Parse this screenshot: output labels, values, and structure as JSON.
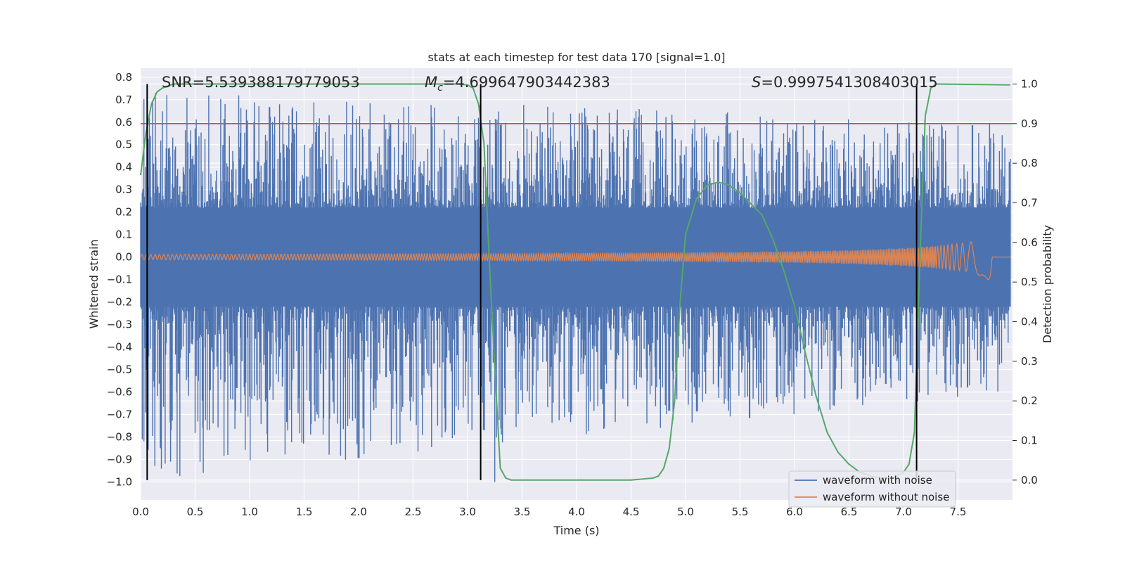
{
  "chart_data": {
    "type": "line",
    "title": "stats at each timestep for test data 170 [signal=1.0]",
    "xlabel": "Time (s)",
    "ylabel": "Whitened strain",
    "y2label": "Detection probability",
    "xlim": [
      0.0,
      8.0
    ],
    "ylim": [
      -1.08,
      0.84
    ],
    "y2lim": [
      -0.05,
      1.04
    ],
    "xticks": [
      "0.0",
      "0.5",
      "1.0",
      "1.5",
      "2.0",
      "2.5",
      "3.0",
      "3.5",
      "4.0",
      "4.5",
      "5.0",
      "5.5",
      "6.0",
      "6.5",
      "7.0",
      "7.5"
    ],
    "yticks": [
      "0.8",
      "0.7",
      "0.6",
      "0.5",
      "0.4",
      "0.3",
      "0.2",
      "0.1",
      "0.0",
      "−0.1",
      "−0.2",
      "−0.3",
      "−0.4",
      "−0.5",
      "−0.6",
      "−0.7",
      "−0.8",
      "−0.9",
      "−1.0"
    ],
    "y2ticks": [
      "1.0",
      "0.9",
      "0.8",
      "0.7",
      "0.6",
      "0.5",
      "0.4",
      "0.3",
      "0.2",
      "0.1",
      "0.0"
    ],
    "grid": true,
    "legend_position": "bottom-right",
    "annotations": {
      "snr": "SNR=5.539388179779053",
      "mc_symbol": "M",
      "mc_sub": "c",
      "mc_value": "=4.699647903442383",
      "s_symbol": "S",
      "s_value": "=0.9997541308403015"
    },
    "threshold": 0.9,
    "vlines": [
      0.06,
      3.12,
      7.12
    ],
    "series": [
      {
        "name": "waveform with noise",
        "color": "#4c72b0",
        "envelope": {
          "x": [
            0.0,
            7.98
          ],
          "y_min": [
            -1.0,
            -0.6
          ],
          "y_max": [
            0.74,
            0.6
          ],
          "min_peak_x": [
            0.63,
            3.25
          ],
          "min_peak_y": [
            -0.77,
            -1.0
          ]
        }
      },
      {
        "name": "waveform without noise",
        "color": "#dd8452",
        "envelope": {
          "x": [
            0.0,
            1.0,
            2.0,
            3.0,
            4.0,
            5.0,
            6.0,
            6.5,
            7.0,
            7.3,
            7.6,
            7.75,
            7.8,
            7.82,
            7.98
          ],
          "amp": [
            0.012,
            0.013,
            0.014,
            0.015,
            0.017,
            0.02,
            0.025,
            0.03,
            0.04,
            0.05,
            0.065,
            0.09,
            0.11,
            0.0,
            0.0
          ]
        }
      },
      {
        "name": "detection probability",
        "axis": "right",
        "color": "#55a868",
        "x": [
          0.0,
          0.05,
          0.1,
          0.15,
          0.2,
          0.3,
          0.4,
          0.5,
          1.0,
          2.0,
          2.9,
          3.0,
          3.05,
          3.1,
          3.15,
          3.2,
          3.25,
          3.3,
          3.35,
          3.4,
          3.5,
          4.0,
          4.5,
          4.7,
          4.75,
          4.8,
          4.85,
          4.9,
          4.95,
          5.0,
          5.1,
          5.2,
          5.3,
          5.4,
          5.5,
          5.7,
          5.8,
          5.9,
          6.0,
          6.1,
          6.2,
          6.3,
          6.4,
          6.5,
          6.6,
          6.7,
          6.8,
          6.9,
          7.0,
          7.05,
          7.1,
          7.15,
          7.2,
          7.25,
          7.3,
          7.98
        ],
        "y": [
          0.77,
          0.88,
          0.95,
          0.98,
          0.99,
          1.0,
          1.0,
          1.0,
          1.0,
          1.0,
          1.0,
          0.998,
          0.99,
          0.95,
          0.85,
          0.55,
          0.28,
          0.03,
          0.005,
          0.0,
          0.0,
          0.0,
          0.0,
          0.005,
          0.01,
          0.03,
          0.08,
          0.2,
          0.45,
          0.62,
          0.71,
          0.745,
          0.752,
          0.745,
          0.725,
          0.67,
          0.61,
          0.53,
          0.44,
          0.32,
          0.21,
          0.12,
          0.07,
          0.04,
          0.02,
          0.01,
          0.005,
          0.005,
          0.02,
          0.04,
          0.12,
          0.56,
          0.92,
          0.99,
          1.0,
          0.998
        ]
      }
    ]
  }
}
